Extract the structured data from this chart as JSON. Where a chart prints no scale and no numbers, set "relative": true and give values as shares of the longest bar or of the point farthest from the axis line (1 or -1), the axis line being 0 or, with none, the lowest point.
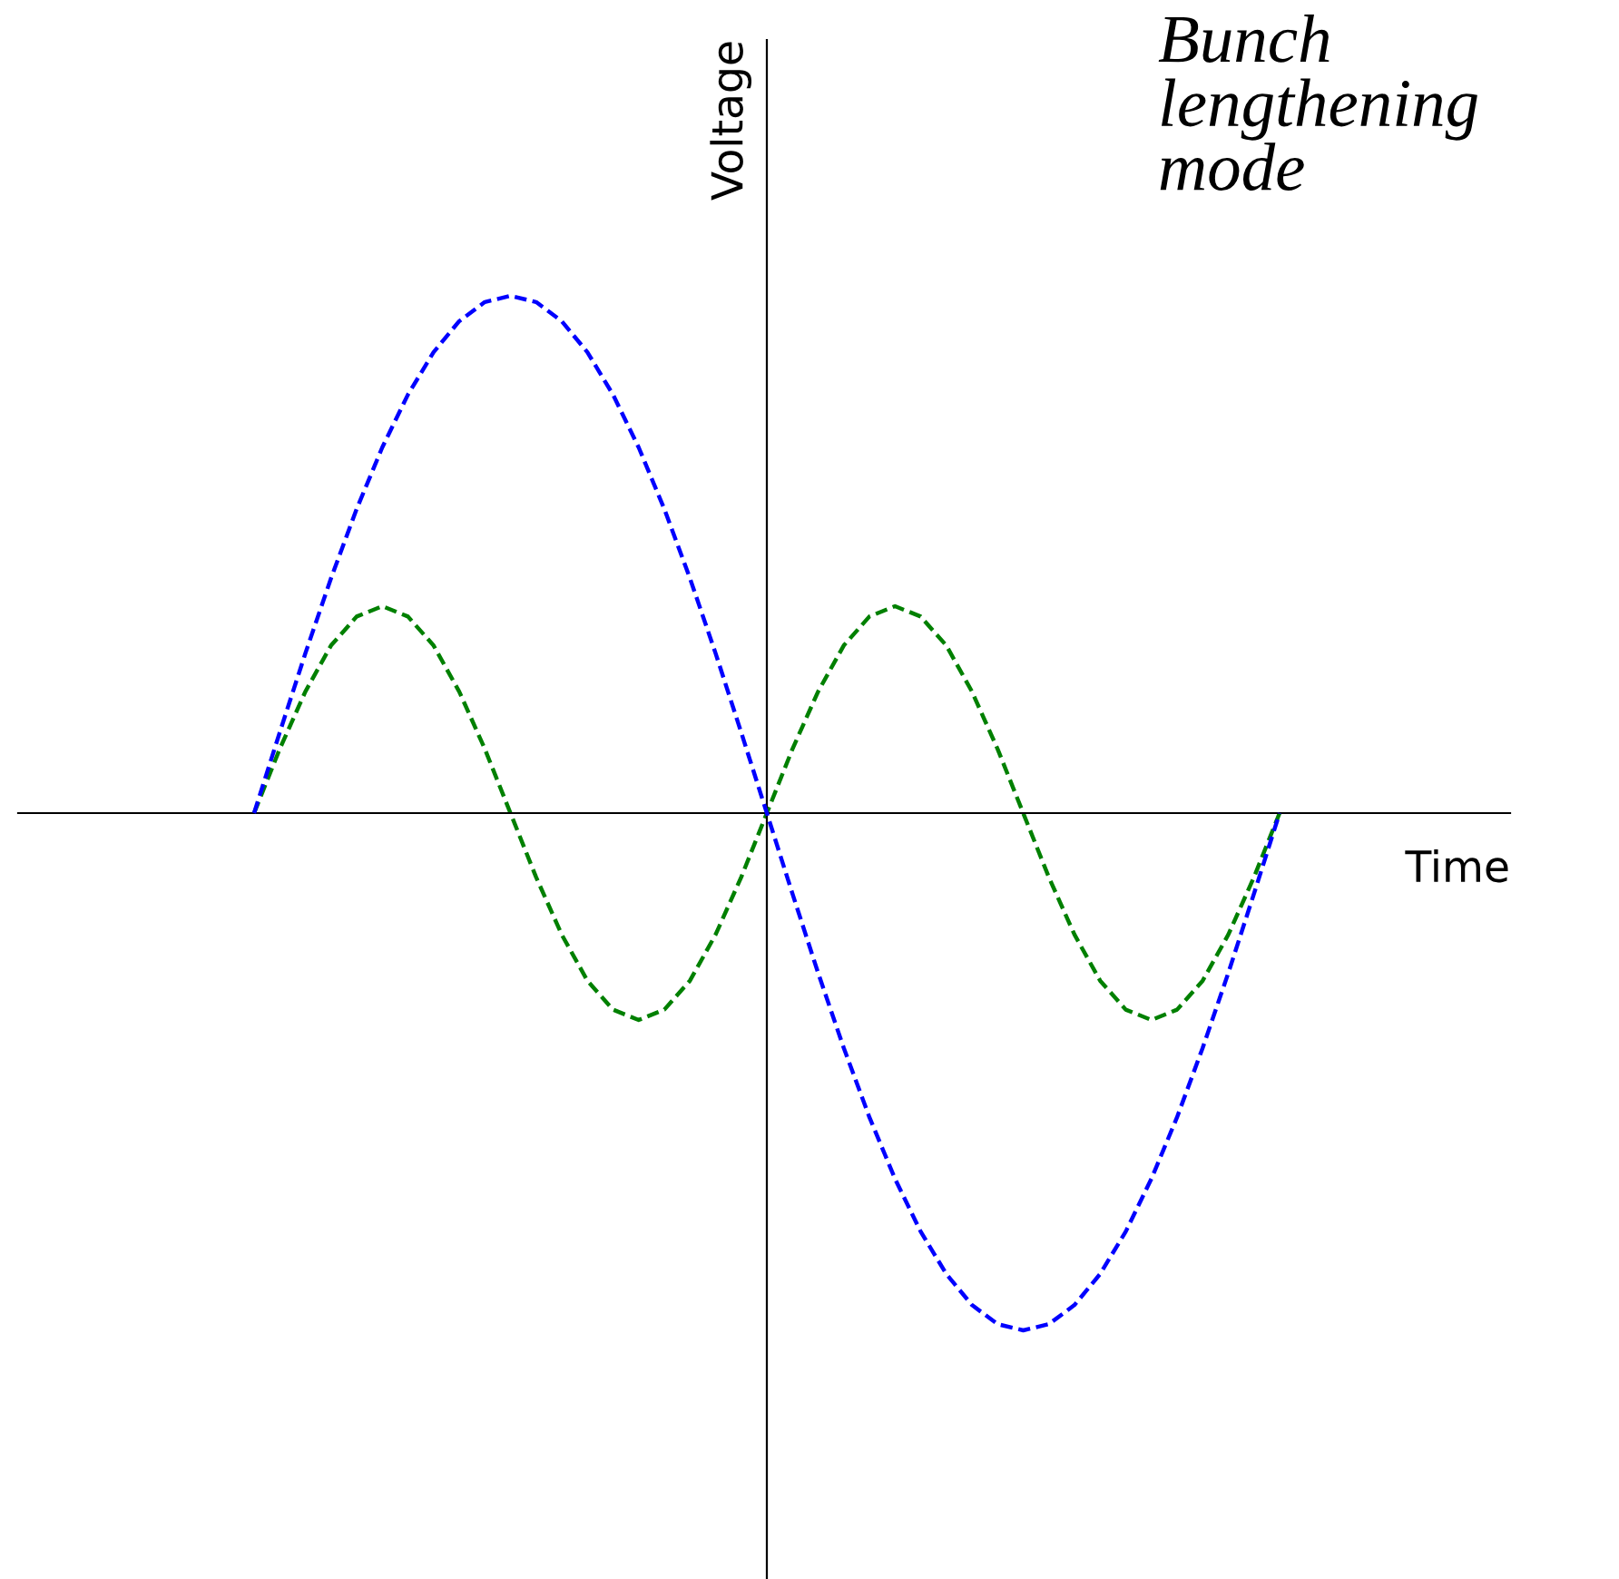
{
  "chart_data": {
    "type": "line",
    "title": "Bunch\nlengthening\nmode",
    "xlabel": "Time",
    "ylabel": "Voltage",
    "relative": true,
    "line_style": "dashed",
    "marker": "none",
    "legend": false,
    "categories": [
      null,
      null,
      null,
      null,
      null,
      null,
      null,
      null,
      null,
      null,
      null,
      null,
      null,
      null,
      null,
      null,
      null,
      null,
      null,
      null,
      null,
      null,
      null,
      null,
      null,
      null,
      null,
      null,
      null,
      null,
      null,
      null,
      null,
      null,
      null,
      null,
      null,
      null,
      null,
      null,
      null
    ],
    "series": [
      {
        "color": "#0000ff",
        "values": [
          0,
          0.156,
          0.309,
          0.454,
          0.588,
          0.707,
          0.809,
          0.891,
          0.951,
          0.988,
          1,
          0.988,
          0.951,
          0.891,
          0.809,
          0.707,
          0.588,
          0.454,
          0.309,
          0.156,
          0,
          -0.156,
          -0.309,
          -0.454,
          -0.588,
          -0.707,
          -0.809,
          -0.891,
          -0.951,
          -0.988,
          -1,
          -0.988,
          -0.951,
          -0.891,
          -0.809,
          -0.707,
          -0.588,
          -0.454,
          -0.309,
          -0.156,
          0
        ]
      },
      {
        "color": "#008000",
        "values": [
          0,
          0.124,
          0.235,
          0.324,
          0.38,
          0.4,
          0.38,
          0.324,
          0.235,
          0.124,
          0,
          -0.124,
          -0.235,
          -0.324,
          -0.38,
          -0.4,
          -0.38,
          -0.324,
          -0.235,
          -0.124,
          0,
          0.124,
          0.235,
          0.324,
          0.38,
          0.4,
          0.38,
          0.324,
          0.235,
          0.124,
          0,
          -0.124,
          -0.235,
          -0.324,
          -0.38,
          -0.4,
          -0.38,
          -0.324,
          -0.235,
          -0.124,
          0
        ]
      }
    ]
  }
}
